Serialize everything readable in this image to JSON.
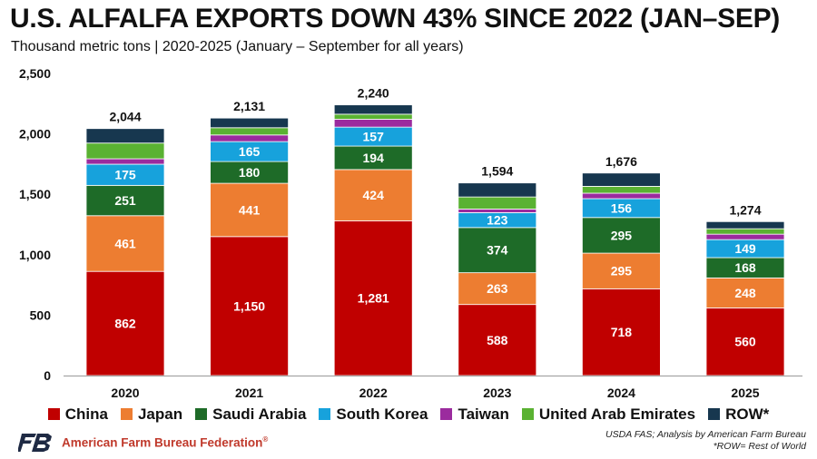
{
  "header": {
    "title": "U.S. ALFALFA EXPORTS DOWN 43% SINCE 2022 (JAN–SEP)",
    "subtitle": "Thousand metric tons | 2020-2025 (January – September for all years)"
  },
  "chart_data": {
    "type": "bar",
    "stacked": true,
    "title": "U.S. ALFALFA EXPORTS DOWN 43% SINCE 2022 (JAN–SEP)",
    "subtitle": "Thousand metric tons | 2020-2025 (January – September for all years)",
    "categories": [
      "2020",
      "2021",
      "2022",
      "2023",
      "2024",
      "2025"
    ],
    "ylim": [
      0,
      2500
    ],
    "yticks": [
      0,
      500,
      1000,
      1500,
      2000,
      2500
    ],
    "ytick_labels": [
      "0",
      "500",
      "1,000",
      "1,500",
      "2,000",
      "2,500"
    ],
    "grid": false,
    "legend_position": "bottom",
    "totals": [
      2044,
      2131,
      2240,
      1594,
      1676,
      1274
    ],
    "total_labels": [
      "2,044",
      "2,131",
      "2,240",
      "1,594",
      "1,676",
      "1,274"
    ],
    "series": [
      {
        "name": "China",
        "color": "#c00000",
        "values": [
          862,
          1150,
          1281,
          588,
          718,
          560
        ],
        "labels": [
          "862",
          "1,150",
          "1,281",
          "588",
          "718",
          "560"
        ]
      },
      {
        "name": "Japan",
        "color": "#ed7d31",
        "values": [
          461,
          441,
          424,
          263,
          295,
          248
        ],
        "labels": [
          "461",
          "441",
          "424",
          "263",
          "295",
          "248"
        ]
      },
      {
        "name": "Saudi Arabia",
        "color": "#1e6b28",
        "values": [
          251,
          180,
          194,
          374,
          295,
          168
        ],
        "labels": [
          "251",
          "180",
          "194",
          "374",
          "295",
          "168"
        ]
      },
      {
        "name": "South Korea",
        "color": "#17a2dc",
        "values": [
          175,
          165,
          157,
          123,
          156,
          149
        ],
        "labels": [
          "175",
          "165",
          "157",
          "123",
          "156",
          "149"
        ]
      },
      {
        "name": "Taiwan",
        "color": "#9b2b9e",
        "values": [
          45,
          55,
          65,
          30,
          45,
          45
        ],
        "labels": [
          "",
          "",
          "",
          "",
          "",
          ""
        ]
      },
      {
        "name": "United Arab Emirates",
        "color": "#5ab232",
        "values": [
          130,
          60,
          42,
          100,
          57,
          45
        ],
        "labels": [
          "",
          "",
          "",
          "",
          "",
          ""
        ]
      },
      {
        "name": "ROW*",
        "color": "#17374f",
        "values": [
          120,
          80,
          77,
          116,
          110,
          59
        ],
        "labels": [
          "",
          "",
          "",
          "",
          "",
          ""
        ]
      }
    ]
  },
  "footer": {
    "organization": "American Farm Bureau Federation",
    "registered_mark": "®",
    "source": "USDA FAS; Analysis by American Farm Bureau",
    "note": "*ROW= Rest of World"
  },
  "colors": {
    "brand_red": "#c0392b",
    "logo_navy": "#1f2a44"
  }
}
